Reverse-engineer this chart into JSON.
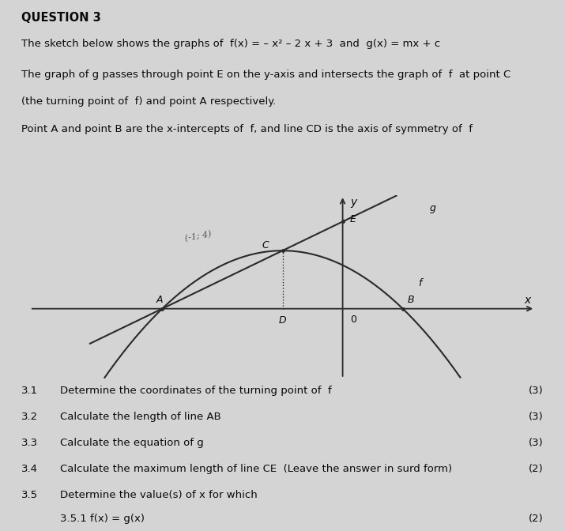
{
  "title": "QUESTION 3",
  "line1": "The sketch below shows the graphs of  f(x) = – x² – 2 x + 3  and  g(x) = mx + c",
  "line2": "The graph of g passes through point E on the y-axis and intersects the graph of  f  at point C",
  "line3": "(the turning point of  f) and point A respectively.",
  "line4": "Point A and point B are the x-intercepts of  f, and line CD is the axis of symmetry of  f",
  "questions": [
    [
      "3.1",
      "Determine the coordinates of the turning point of  f",
      "(3)"
    ],
    [
      "3.2",
      "Calculate the length of line AB",
      "(3)"
    ],
    [
      "3.3",
      "Calculate the equation of g",
      "(3)"
    ],
    [
      "3.4",
      "Calculate the maximum length of line CE  (Leave the answer in surd form)",
      "(2)"
    ],
    [
      "3.5",
      "Determine the value(s) of x for which",
      ""
    ],
    [
      "",
      "3.5.1 f(x) = g(x)",
      "(2)"
    ]
  ],
  "graph": {
    "xlim": [
      -5.2,
      3.2
    ],
    "ylim": [
      -4.8,
      7.8
    ],
    "axis_color": "#2a2a2a",
    "curve_color": "#2a2a2a",
    "turning_point_label": "(-1; 4)"
  },
  "bg_color": "#d4d4d4",
  "text_color": "#0a0a0a"
}
